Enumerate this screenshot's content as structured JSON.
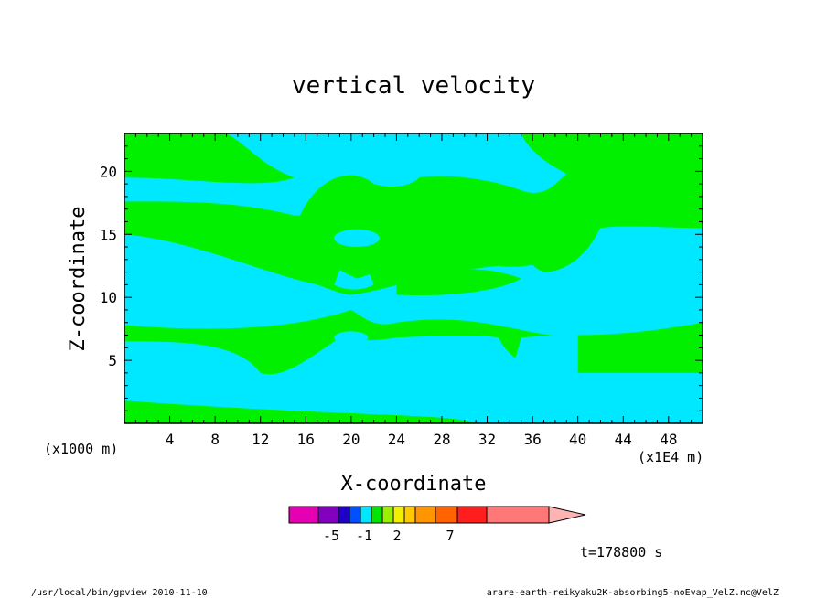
{
  "chart_data": {
    "type": "heatmap",
    "title": "vertical velocity",
    "xlabel": "X-coordinate",
    "ylabel": "Z-coordinate",
    "x_unit_left": "(x1000 m)",
    "x_unit_right": "(x1E4 m)",
    "xlim": [
      0,
      51
    ],
    "ylim": [
      0,
      23
    ],
    "x_ticks": [
      4,
      8,
      12,
      16,
      20,
      24,
      28,
      32,
      36,
      40,
      44,
      48
    ],
    "y_ticks": [
      5,
      10,
      15,
      20
    ],
    "grid": false,
    "field_colors": {
      "positive": "#00f000",
      "negative": "#00e8ff"
    },
    "colorbar": {
      "colors": [
        "#e600b4",
        "#8200be",
        "#1e00c8",
        "#0050ff",
        "#00e6ff",
        "#00e600",
        "#9bf000",
        "#f0f000",
        "#ffc800",
        "#ff9600",
        "#ff6400",
        "#ff1e1e",
        "#ff7878",
        "#ffb4b4"
      ],
      "tick_labels": [
        "-5",
        "-1",
        "2",
        "7"
      ]
    },
    "time_label": "t=178800 s"
  },
  "footer": {
    "left": "/usr/local/bin/gpview  2010-11-10",
    "right": "arare-earth-reikyaku2K-absorbing5-noEvap_VelZ.nc@VelZ"
  }
}
